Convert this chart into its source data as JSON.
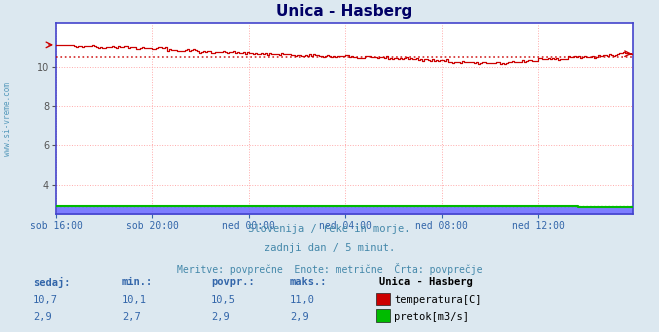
{
  "title": "Unica - Hasberg",
  "bg_color": "#dce8f0",
  "plot_bg_color": "#ffffff",
  "grid_color": "#ffaaaa",
  "spine_color": "#4444cc",
  "watermark": "www.si-vreme.com",
  "subtitle_lines": [
    "Slovenija / reke in morje.",
    "zadnji dan / 5 minut.",
    "Meritve: povprečne  Enote: metrične  Črta: povprečje"
  ],
  "stats_headers": [
    "sedaj:",
    "min.:",
    "povpr.:",
    "maks.:"
  ],
  "station_name": "Unica - Hasberg",
  "series": [
    {
      "name": "temperatura[C]",
      "color": "#cc0000",
      "avg_value": 10.5,
      "sedaj": "10,7",
      "min": "10,1",
      "povpr": "10,5",
      "maks": "11,0"
    },
    {
      "name": "pretok[m3/s]",
      "color": "#00bb00",
      "avg_value": 2.9,
      "sedaj": "2,9",
      "min": "2,7",
      "povpr": "2,9",
      "maks": "2,9"
    }
  ],
  "x_ticks": [
    "sob 16:00",
    "sob 20:00",
    "ned 00:00",
    "ned 04:00",
    "ned 08:00",
    "ned 12:00"
  ],
  "x_ticks_pos": [
    0,
    48,
    96,
    144,
    192,
    240
  ],
  "n_points": 288,
  "ylim": [
    2.5,
    12.2
  ],
  "yticks": [
    4,
    6,
    8,
    10
  ],
  "text_color": "#3366aa",
  "title_color": "#000066",
  "flow_band_color": "#6666ff",
  "subtitle_color": "#4488aa"
}
